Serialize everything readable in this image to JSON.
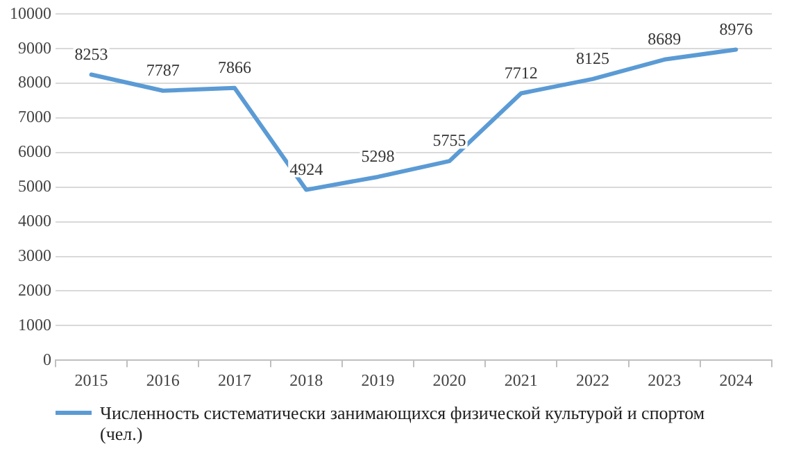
{
  "chart_data": {
    "type": "line",
    "categories": [
      "2015",
      "2016",
      "2017",
      "2018",
      "2019",
      "2020",
      "2021",
      "2022",
      "2023",
      "2024"
    ],
    "series": [
      {
        "name": "Численность систематически занимающихся физической культурой и спортом (чел.)",
        "color": "#5b9bd5",
        "values": [
          8253,
          7787,
          7866,
          4924,
          5298,
          5755,
          7712,
          8125,
          8689,
          8976
        ]
      }
    ],
    "ylim": [
      0,
      10000
    ],
    "yticks": [
      0,
      1000,
      2000,
      3000,
      4000,
      5000,
      6000,
      7000,
      8000,
      9000,
      10000
    ],
    "grid": "y",
    "legend": "bottom",
    "marker": "none",
    "line_style": "solid",
    "data_labels": true
  }
}
